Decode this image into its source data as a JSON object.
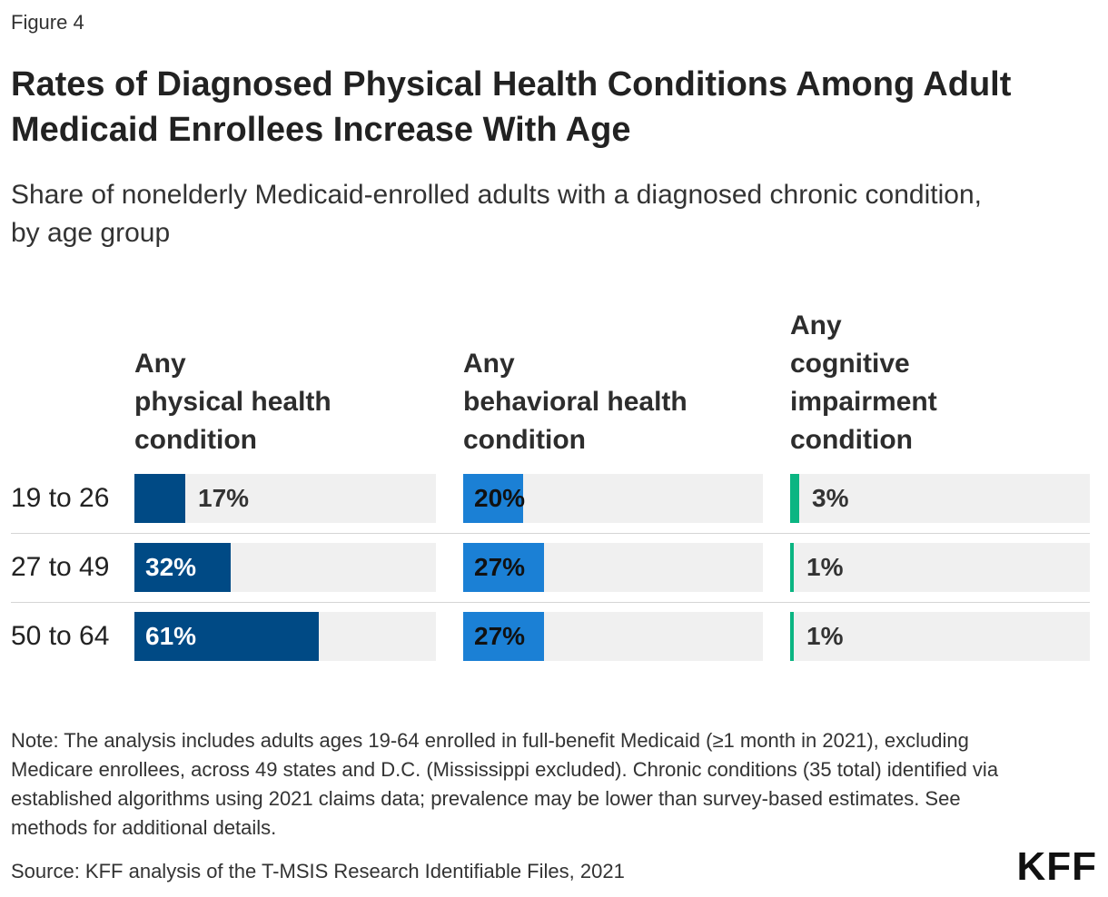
{
  "figure_label": "Figure 4",
  "title": "Rates of Diagnosed Physical Health Conditions Among Adult Medicaid Enrollees Increase With Age",
  "subtitle": "Share of nonelderly Medicaid-enrolled adults with a diagnosed chronic condition, by age group",
  "colors": {
    "physical": "#004A85",
    "behavioral": "#1B80D5",
    "cognitive": "#0BB582",
    "track": "#F0F0F0"
  },
  "chart_data": {
    "type": "bar",
    "orientation": "horizontal",
    "layout": "small-multiples",
    "title": "Rates of Diagnosed Physical Health Conditions Among Adult Medicaid Enrollees Increase With Age",
    "subtitle": "Share of nonelderly Medicaid-enrolled adults with a diagnosed chronic condition, by age group",
    "categories": [
      "19 to 26",
      "27 to 49",
      "50 to 64"
    ],
    "xlim": [
      0,
      100
    ],
    "unit": "%",
    "series": [
      {
        "key": "physical",
        "name_lines": [
          "Any",
          "physical health",
          "condition"
        ],
        "values": [
          17,
          32,
          61
        ],
        "labels": [
          "17%",
          "32%",
          "61%"
        ]
      },
      {
        "key": "behavioral",
        "name_lines": [
          "Any",
          "behavioral health",
          "condition"
        ],
        "values": [
          20,
          27,
          27
        ],
        "labels": [
          "20%",
          "27%",
          "27%"
        ]
      },
      {
        "key": "cognitive",
        "name_lines": [
          "Any",
          "cognitive",
          "impairment",
          "condition"
        ],
        "values": [
          3,
          1,
          1
        ],
        "labels": [
          "3%",
          "1%",
          "1%"
        ]
      }
    ]
  },
  "note": "Note: The analysis includes adults ages 19-64 enrolled in full-benefit Medicaid (≥1 month in 2021), excluding Medicare enrollees, across 49 states and D.C. (Mississippi excluded). Chronic conditions (35 total) identified via established algorithms using 2021 claims data; prevalence may be lower than survey-based estimates. See methods for additional details.",
  "source": "Source: KFF analysis of the T-MSIS Research Identifiable Files, 2021",
  "logo_text": "KFF"
}
